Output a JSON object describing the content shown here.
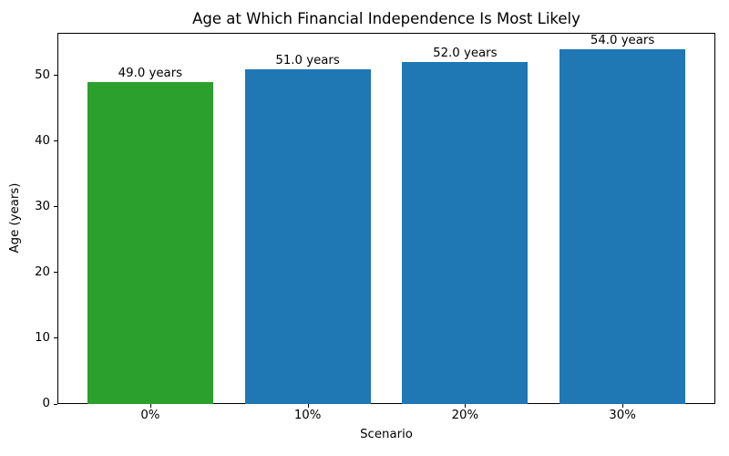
{
  "figure": {
    "title": "Age at Which Financial Independence Is Most Likely",
    "xlabel": "Scenario",
    "ylabel": "Age (years)"
  },
  "chart_data": {
    "type": "bar",
    "title": "Age at Which Financial Independence Is Most Likely",
    "xlabel": "Scenario",
    "ylabel": "Age (years)",
    "categories": [
      "0%",
      "10%",
      "20%",
      "30%"
    ],
    "values": [
      49.0,
      51.0,
      52.0,
      54.0
    ],
    "bar_labels": [
      "49.0 years",
      "51.0 years",
      "52.0 years",
      "54.0 years"
    ],
    "bar_colors": [
      "#2ca02c",
      "#1f77b4",
      "#1f77b4",
      "#1f77b4"
    ],
    "bar_width": 0.8,
    "xlim": [
      -0.59,
      3.59
    ],
    "ylim": [
      0,
      56.5
    ],
    "yticks": [
      0,
      10,
      20,
      30,
      40,
      50
    ],
    "grid": false,
    "legend": null,
    "background_color": "#ffffff",
    "spine_color": "#000000"
  }
}
